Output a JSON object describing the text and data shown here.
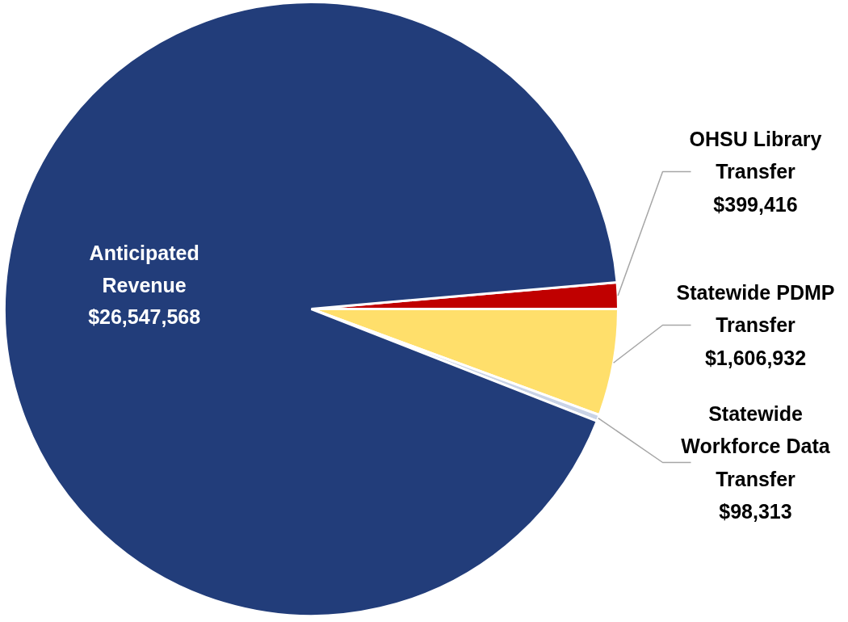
{
  "chart_data": {
    "type": "pie",
    "categories": [
      "OHSU Library Transfer",
      "Statewide PDMP Transfer",
      "Statewide Workforce Data Transfer",
      "Anticipated Revenue"
    ],
    "values": [
      399416,
      1606932,
      98313,
      26547568
    ],
    "colors": [
      "#c00000",
      "#ffdf6b",
      "#c9d3e6",
      "#223d7a"
    ],
    "value_labels": [
      "$399,416",
      "$1,606,932",
      "$98,313",
      "$26,547,568"
    ]
  }
}
